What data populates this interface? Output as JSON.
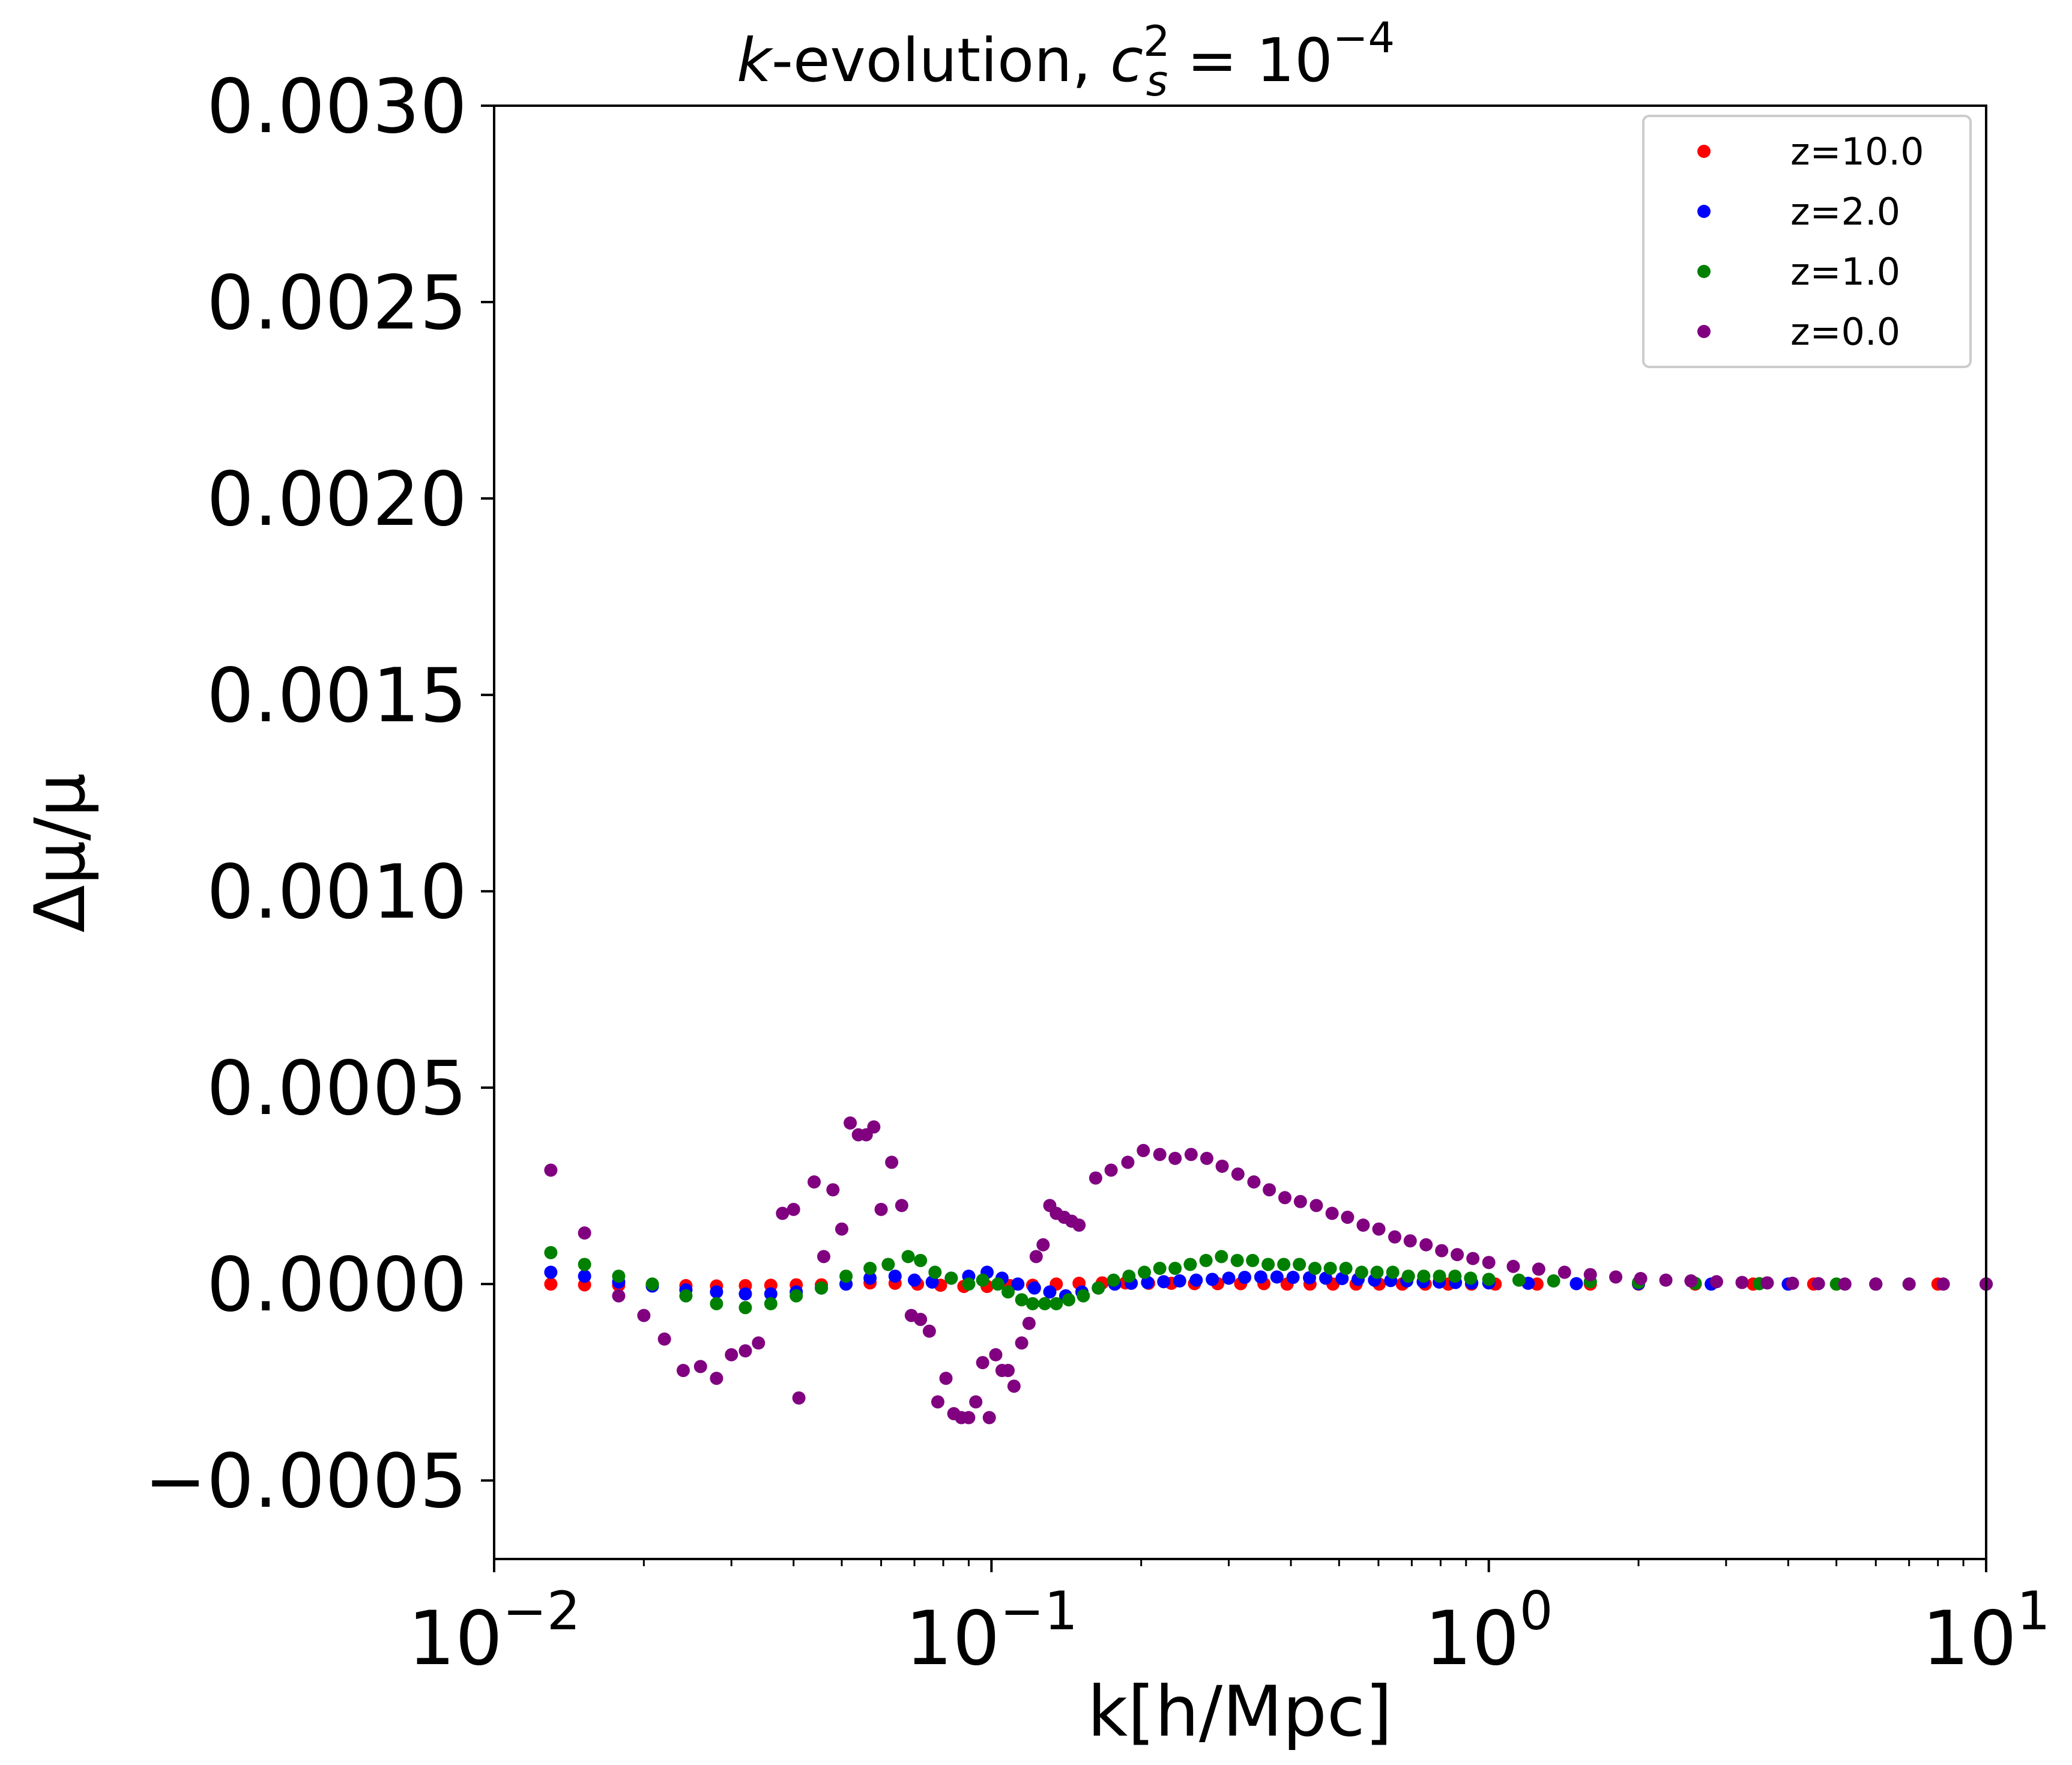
{
  "chart_data": {
    "type": "scatter",
    "title": "k-evolution, c_s^2 = 10^-4",
    "title_parts": {
      "k": "k",
      "evolution": "-evolution, ",
      "c": "c",
      "sub": "s",
      "sup": "2",
      "eq": " = 10",
      "exp": "−4"
    },
    "xlabel": "k[h/Mpc]",
    "ylabel": "Δμ/μ",
    "xscale": "log",
    "xlim": [
      0.01,
      10
    ],
    "ylim": [
      -0.0007,
      0.003
    ],
    "x_ticks": [
      {
        "value": 0.01,
        "base": "10",
        "exp": "−2"
      },
      {
        "value": 0.1,
        "base": "10",
        "exp": "−1"
      },
      {
        "value": 1,
        "base": "10",
        "exp": "0"
      },
      {
        "value": 10,
        "base": "10",
        "exp": "1"
      }
    ],
    "y_ticks": [
      {
        "value": -0.0005,
        "label": "−0.0005"
      },
      {
        "value": 0.0,
        "label": "0.0000"
      },
      {
        "value": 0.0005,
        "label": "0.0005"
      },
      {
        "value": 0.001,
        "label": "0.0010"
      },
      {
        "value": 0.0015,
        "label": "0.0015"
      },
      {
        "value": 0.002,
        "label": "0.0020"
      },
      {
        "value": 0.0025,
        "label": "0.0025"
      },
      {
        "value": 0.003,
        "label": "0.0030"
      }
    ],
    "legend_position": "top-right",
    "series": [
      {
        "name": "z=10.0",
        "color": "#ff0000",
        "points": [
          [
            0.013,
            0.0
          ],
          [
            0.0152,
            -2e-06
          ],
          [
            0.0178,
            -3e-06
          ],
          [
            0.0208,
            -2e-06
          ],
          [
            0.0243,
            -4e-06
          ],
          [
            0.028,
            -5e-06
          ],
          [
            0.032,
            -4e-06
          ],
          [
            0.036,
            -3e-06
          ],
          [
            0.0405,
            -2e-06
          ],
          [
            0.0455,
            -2e-06
          ],
          [
            0.051,
            0.0
          ],
          [
            0.057,
            3e-06
          ],
          [
            0.064,
            2e-06
          ],
          [
            0.071,
            0.0
          ],
          [
            0.079,
            -3e-06
          ],
          [
            0.088,
            -6e-06
          ],
          [
            0.098,
            -6e-06
          ],
          [
            0.109,
            -4e-06
          ],
          [
            0.121,
            -3e-06
          ],
          [
            0.135,
            0.0
          ],
          [
            0.15,
            2e-06
          ],
          [
            0.167,
            3e-06
          ],
          [
            0.186,
            3e-06
          ],
          [
            0.207,
            2e-06
          ],
          [
            0.23,
            2e-06
          ],
          [
            0.256,
            1e-06
          ],
          [
            0.285,
            1e-06
          ],
          [
            0.317,
            1e-06
          ],
          [
            0.353,
            1e-06
          ],
          [
            0.393,
            0.0
          ],
          [
            0.437,
            0.0
          ],
          [
            0.486,
            0.0
          ],
          [
            0.541,
            0.0
          ],
          [
            0.602,
            0.0
          ],
          [
            0.67,
            0.0
          ],
          [
            0.745,
            0.0
          ],
          [
            0.829,
            0.0
          ],
          [
            0.923,
            0.0
          ],
          [
            1.03,
            0.0
          ],
          [
            1.25,
            0.0
          ],
          [
            1.6,
            0.0
          ],
          [
            2.0,
            0.0
          ],
          [
            2.6,
            0.0
          ],
          [
            3.4,
            0.0
          ],
          [
            4.5,
            0.0
          ],
          [
            6.0,
            0.0
          ],
          [
            8.0,
            0.0
          ],
          [
            10.0,
            0.0
          ]
        ]
      },
      {
        "name": "z=2.0",
        "color": "#0000ff",
        "points": [
          [
            0.013,
            3e-05
          ],
          [
            0.0152,
            2e-05
          ],
          [
            0.0178,
            5e-06
          ],
          [
            0.0208,
            -5e-06
          ],
          [
            0.0243,
            -1.5e-05
          ],
          [
            0.028,
            -2e-05
          ],
          [
            0.032,
            -2.5e-05
          ],
          [
            0.036,
            -2.5e-05
          ],
          [
            0.0405,
            -2e-05
          ],
          [
            0.0455,
            -1e-05
          ],
          [
            0.051,
            0.0
          ],
          [
            0.057,
            1.5e-05
          ],
          [
            0.064,
            2e-05
          ],
          [
            0.07,
            1e-05
          ],
          [
            0.076,
            5e-06
          ],
          [
            0.083,
            1.5e-05
          ],
          [
            0.09,
            2e-05
          ],
          [
            0.098,
            3e-05
          ],
          [
            0.105,
            1.5e-05
          ],
          [
            0.113,
            0.0
          ],
          [
            0.122,
            -1e-05
          ],
          [
            0.131,
            -2e-05
          ],
          [
            0.141,
            -3e-05
          ],
          [
            0.152,
            -2e-05
          ],
          [
            0.164,
            -1e-05
          ],
          [
            0.177,
            0.0
          ],
          [
            0.191,
            2e-06
          ],
          [
            0.206,
            4e-06
          ],
          [
            0.222,
            6e-06
          ],
          [
            0.239,
            8e-06
          ],
          [
            0.258,
            1e-05
          ],
          [
            0.278,
            1.2e-05
          ],
          [
            0.3,
            1.5e-05
          ],
          [
            0.323,
            1.7e-05
          ],
          [
            0.348,
            1.8e-05
          ],
          [
            0.375,
            1.8e-05
          ],
          [
            0.404,
            1.7e-05
          ],
          [
            0.436,
            1.6e-05
          ],
          [
            0.47,
            1.5e-05
          ],
          [
            0.507,
            1.4e-05
          ],
          [
            0.546,
            1.2e-05
          ],
          [
            0.589,
            1e-05
          ],
          [
            0.635,
            9e-06
          ],
          [
            0.684,
            8e-06
          ],
          [
            0.738,
            6e-06
          ],
          [
            0.795,
            5e-06
          ],
          [
            0.857,
            4e-06
          ],
          [
            0.924,
            3e-06
          ],
          [
            1.0,
            3e-06
          ],
          [
            1.2,
            2e-06
          ],
          [
            1.5,
            1e-06
          ],
          [
            2.0,
            1e-06
          ],
          [
            2.8,
            0.0
          ],
          [
            4.0,
            0.0
          ],
          [
            6.0,
            0.0
          ],
          [
            10.0,
            0.0
          ]
        ]
      },
      {
        "name": "z=1.0",
        "color": "#008000",
        "points": [
          [
            0.013,
            8e-05
          ],
          [
            0.0152,
            5e-05
          ],
          [
            0.0178,
            2e-05
          ],
          [
            0.0208,
            0.0
          ],
          [
            0.0243,
            -3e-05
          ],
          [
            0.028,
            -5e-05
          ],
          [
            0.032,
            -6e-05
          ],
          [
            0.036,
            -5e-05
          ],
          [
            0.0405,
            -3e-05
          ],
          [
            0.0455,
            -1e-05
          ],
          [
            0.051,
            2e-05
          ],
          [
            0.057,
            4e-05
          ],
          [
            0.062,
            5e-05
          ],
          [
            0.068,
            7e-05
          ],
          [
            0.072,
            6e-05
          ],
          [
            0.077,
            3e-05
          ],
          [
            0.083,
            1.5e-05
          ],
          [
            0.09,
            0.0
          ],
          [
            0.096,
            1e-05
          ],
          [
            0.103,
            0.0
          ],
          [
            0.108,
            -2e-05
          ],
          [
            0.115,
            -4e-05
          ],
          [
            0.121,
            -5e-05
          ],
          [
            0.128,
            -5e-05
          ],
          [
            0.135,
            -5e-05
          ],
          [
            0.143,
            -4e-05
          ],
          [
            0.153,
            -3e-05
          ],
          [
            0.164,
            -1e-05
          ],
          [
            0.176,
            1e-05
          ],
          [
            0.189,
            2e-05
          ],
          [
            0.203,
            3e-05
          ],
          [
            0.218,
            4e-05
          ],
          [
            0.234,
            4e-05
          ],
          [
            0.251,
            5e-05
          ],
          [
            0.27,
            6e-05
          ],
          [
            0.29,
            7e-05
          ],
          [
            0.312,
            6e-05
          ],
          [
            0.335,
            6e-05
          ],
          [
            0.36,
            5e-05
          ],
          [
            0.387,
            5e-05
          ],
          [
            0.416,
            5e-05
          ],
          [
            0.447,
            4e-05
          ],
          [
            0.48,
            4e-05
          ],
          [
            0.516,
            4e-05
          ],
          [
            0.555,
            3e-05
          ],
          [
            0.596,
            3e-05
          ],
          [
            0.641,
            3e-05
          ],
          [
            0.689,
            2e-05
          ],
          [
            0.74,
            2e-05
          ],
          [
            0.796,
            2e-05
          ],
          [
            0.855,
            2e-05
          ],
          [
            0.919,
            1.5e-05
          ],
          [
            1.0,
            1.2e-05
          ],
          [
            1.15,
            1e-05
          ],
          [
            1.35,
            8e-06
          ],
          [
            1.6,
            6e-06
          ],
          [
            2.0,
            4e-06
          ],
          [
            2.6,
            2e-06
          ],
          [
            3.5,
            1e-06
          ],
          [
            5.0,
            0.0
          ],
          [
            7.0,
            0.0
          ],
          [
            10.0,
            0.0
          ]
        ]
      },
      {
        "name": "z=0.0",
        "color": "#800080",
        "points": [
          [
            0.013,
            0.00029
          ],
          [
            0.0152,
            0.00013
          ],
          [
            0.0178,
            -3e-05
          ],
          [
            0.02,
            -8e-05
          ],
          [
            0.022,
            -0.00014
          ],
          [
            0.024,
            -0.00022
          ],
          [
            0.026,
            -0.00021
          ],
          [
            0.028,
            -0.00024
          ],
          [
            0.03,
            -0.00018
          ],
          [
            0.032,
            -0.00017
          ],
          [
            0.034,
            -0.00015
          ],
          [
            0.038,
            0.00018
          ],
          [
            0.04,
            0.00019
          ],
          [
            0.041,
            -0.00029
          ],
          [
            0.044,
            0.00026
          ],
          [
            0.046,
            7e-05
          ],
          [
            0.048,
            0.00024
          ],
          [
            0.05,
            0.00014
          ],
          [
            0.052,
            0.00041
          ],
          [
            0.054,
            0.00038
          ],
          [
            0.056,
            0.00038
          ],
          [
            0.058,
            0.0004
          ],
          [
            0.06,
            0.00019
          ],
          [
            0.063,
            0.00031
          ],
          [
            0.066,
            0.0002
          ],
          [
            0.069,
            -8e-05
          ],
          [
            0.072,
            -9e-05
          ],
          [
            0.075,
            -0.00012
          ],
          [
            0.078,
            -0.0003
          ],
          [
            0.081,
            -0.00024
          ],
          [
            0.084,
            -0.00033
          ],
          [
            0.087,
            -0.00034
          ],
          [
            0.09,
            -0.00034
          ],
          [
            0.093,
            -0.0003
          ],
          [
            0.096,
            -0.0002
          ],
          [
            0.099,
            -0.00034
          ],
          [
            0.102,
            -0.00018
          ],
          [
            0.105,
            -0.00022
          ],
          [
            0.108,
            -0.00022
          ],
          [
            0.111,
            -0.00026
          ],
          [
            0.115,
            -0.00015
          ],
          [
            0.119,
            -0.0001
          ],
          [
            0.123,
            7e-05
          ],
          [
            0.127,
            0.0001
          ],
          [
            0.131,
            0.0002
          ],
          [
            0.135,
            0.00018
          ],
          [
            0.14,
            0.00017
          ],
          [
            0.145,
            0.00016
          ],
          [
            0.15,
            0.00015
          ],
          [
            0.162,
            0.00027
          ],
          [
            0.174,
            0.00029
          ],
          [
            0.188,
            0.00031
          ],
          [
            0.202,
            0.00034
          ],
          [
            0.218,
            0.00033
          ],
          [
            0.234,
            0.00032
          ],
          [
            0.252,
            0.00033
          ],
          [
            0.271,
            0.00032
          ],
          [
            0.291,
            0.0003
          ],
          [
            0.313,
            0.00028
          ],
          [
            0.337,
            0.00026
          ],
          [
            0.362,
            0.00024
          ],
          [
            0.389,
            0.00022
          ],
          [
            0.418,
            0.00021
          ],
          [
            0.45,
            0.0002
          ],
          [
            0.484,
            0.00018
          ],
          [
            0.52,
            0.00017
          ],
          [
            0.559,
            0.00015
          ],
          [
            0.601,
            0.00014
          ],
          [
            0.647,
            0.00012
          ],
          [
            0.695,
            0.00011
          ],
          [
            0.748,
            0.0001
          ],
          [
            0.804,
            8.5e-05
          ],
          [
            0.864,
            7.5e-05
          ],
          [
            0.929,
            6.5e-05
          ],
          [
            1.0,
            5.5e-05
          ],
          [
            1.12,
            4.5e-05
          ],
          [
            1.26,
            3.8e-05
          ],
          [
            1.42,
            3e-05
          ],
          [
            1.6,
            2.4e-05
          ],
          [
            1.8,
            1.8e-05
          ],
          [
            2.02,
            1.4e-05
          ],
          [
            2.27,
            1e-05
          ],
          [
            2.55,
            8e-06
          ],
          [
            2.87,
            6e-06
          ],
          [
            3.23,
            4e-06
          ],
          [
            3.63,
            3e-06
          ],
          [
            4.08,
            2e-06
          ],
          [
            4.6,
            1e-06
          ],
          [
            5.2,
            0.0
          ],
          [
            6.0,
            0.0
          ],
          [
            7.0,
            0.0
          ],
          [
            8.2,
            0.0
          ],
          [
            10.0,
            0.0
          ]
        ]
      }
    ]
  }
}
